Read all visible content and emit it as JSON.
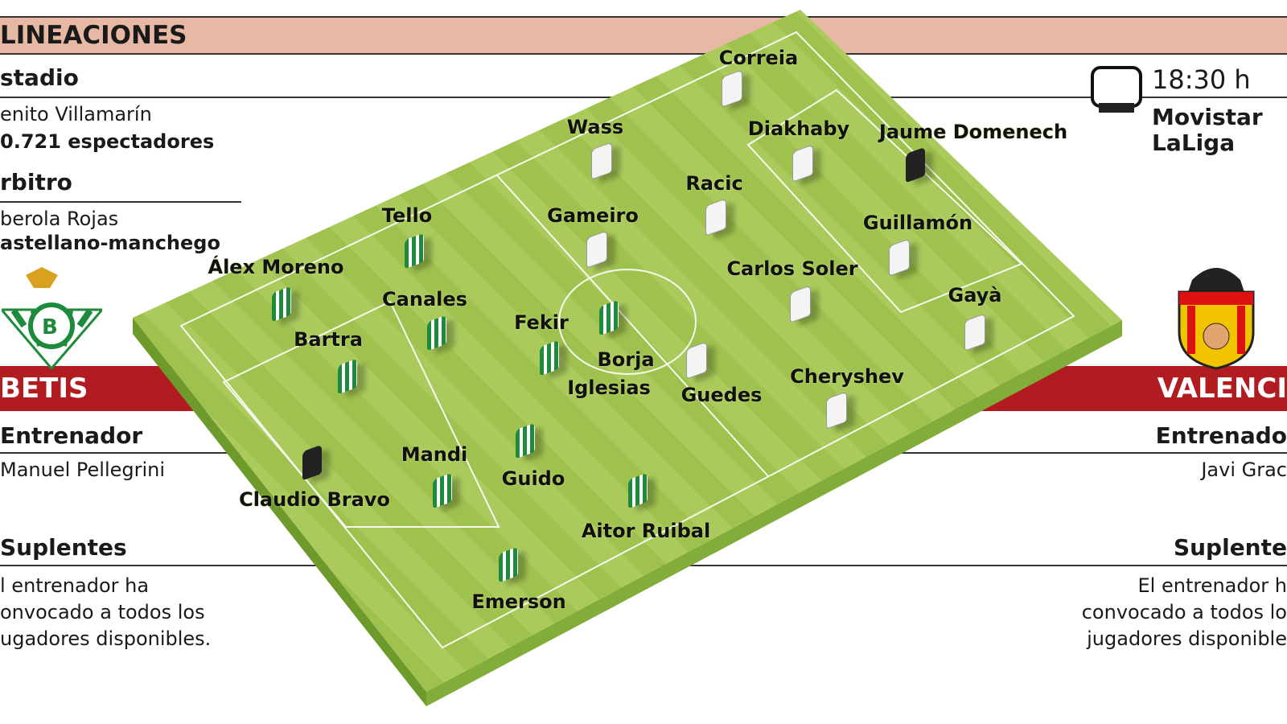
{
  "header": {
    "title": "LINEACIONES"
  },
  "info": {
    "stadium_heading": "stadio",
    "stadium": "enito Villamarín",
    "spectators": "0.721 espectadores",
    "referee_heading": "rbitro",
    "referee": "berola Rojas",
    "referee_committee": "astellano-manchego",
    "time": "18:30 h",
    "tv": [
      "Movistar",
      "LaLiga"
    ]
  },
  "home": {
    "name": "BETIS",
    "coach_heading": "Entrenador",
    "coach": "Manuel Pellegrini",
    "subs_heading": "Suplentes",
    "subs": [
      "l entrenador ha",
      "onvocado a todos los",
      "ugadores disponibles."
    ]
  },
  "away": {
    "name": "VALENCI",
    "coach_heading": "Entrenado",
    "coach": "Javi Grac",
    "subs_heading": "Suplente",
    "subs": [
      "El entrenador h",
      "convocado a todos lo",
      "jugadores disponible"
    ]
  },
  "colors": {
    "header": "#e7b9a4",
    "band": "#b01c1f",
    "pitch": "#a8c95a",
    "betis": "#1e8a3b"
  },
  "players": [
    {
      "name": "Correia",
      "team": "valencia"
    },
    {
      "name": "Wass",
      "team": "valencia"
    },
    {
      "name": "Diakhaby",
      "team": "valencia"
    },
    {
      "name": "Jaume Domenech",
      "team": "valencia-gk"
    },
    {
      "name": "Racic",
      "team": "valencia"
    },
    {
      "name": "Gameiro",
      "team": "valencia"
    },
    {
      "name": "Guillamón",
      "team": "valencia"
    },
    {
      "name": "Carlos Soler",
      "team": "valencia"
    },
    {
      "name": "Gayà",
      "team": "valencia"
    },
    {
      "name": "Guedes",
      "team": "valencia"
    },
    {
      "name": "Cheryshev",
      "team": "valencia"
    },
    {
      "name": "Tello",
      "team": "betis"
    },
    {
      "name": "Álex Moreno",
      "team": "betis"
    },
    {
      "name": "Canales",
      "team": "betis"
    },
    {
      "name": "Bartra",
      "team": "betis"
    },
    {
      "name": "Fekir",
      "team": "betis"
    },
    {
      "name": "Borja",
      "team": "betis"
    },
    {
      "name": "Iglesias",
      "team": "betis-label"
    },
    {
      "name": "Mandi",
      "team": "betis"
    },
    {
      "name": "Guido",
      "team": "betis"
    },
    {
      "name": "Claudio Bravo",
      "team": "betis-gk"
    },
    {
      "name": "Aitor Ruibal",
      "team": "betis"
    },
    {
      "name": "Emerson",
      "team": "betis"
    }
  ]
}
